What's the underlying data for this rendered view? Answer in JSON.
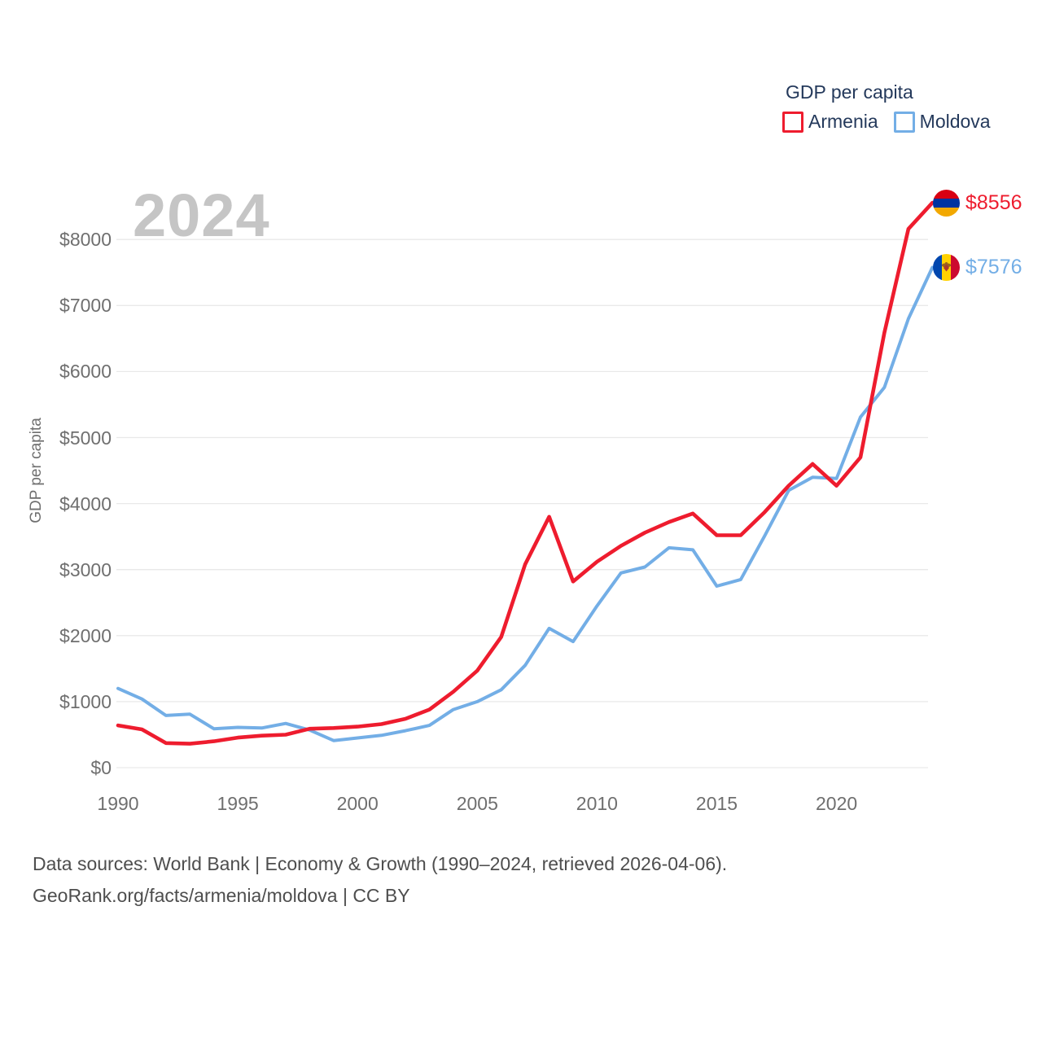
{
  "legend": {
    "title": "GDP per capita",
    "items": [
      {
        "label": "Armenia",
        "color": "#ee1c2e"
      },
      {
        "label": "Moldova",
        "color": "#73aee6"
      }
    ]
  },
  "watermark": "2024",
  "y_axis_title": "GDP per capita",
  "footer": {
    "line1": "Data sources: World Bank | Economy & Growth (1990–2024, retrieved 2026-04-06).",
    "line2": "GeoRank.org/facts/armenia/moldova | CC BY"
  },
  "chart_data": {
    "type": "line",
    "title": "GDP per capita",
    "xlabel": "",
    "ylabel": "GDP per capita",
    "grid": true,
    "legend_position": "top-right",
    "xlim": [
      1990,
      2024
    ],
    "ylim": [
      0,
      8800
    ],
    "x_ticks": [
      1990,
      1995,
      2000,
      2005,
      2010,
      2015,
      2020
    ],
    "y_ticks": [
      {
        "value": 0,
        "label": "$0"
      },
      {
        "value": 1000,
        "label": "$1000"
      },
      {
        "value": 2000,
        "label": "$2000"
      },
      {
        "value": 3000,
        "label": "$3000"
      },
      {
        "value": 4000,
        "label": "$4000"
      },
      {
        "value": 5000,
        "label": "$5000"
      },
      {
        "value": 6000,
        "label": "$6000"
      },
      {
        "value": 7000,
        "label": "$7000"
      },
      {
        "value": 8000,
        "label": "$8000"
      }
    ],
    "x": [
      1990,
      1991,
      1992,
      1993,
      1994,
      1995,
      1996,
      1997,
      1998,
      1999,
      2000,
      2001,
      2002,
      2003,
      2004,
      2005,
      2006,
      2007,
      2008,
      2009,
      2010,
      2011,
      2012,
      2013,
      2014,
      2015,
      2016,
      2017,
      2018,
      2019,
      2020,
      2021,
      2022,
      2023,
      2024
    ],
    "series": [
      {
        "name": "Armenia",
        "color": "#ee1c2e",
        "flag": "armenia-flag",
        "end_label": "$8556",
        "values": [
          640,
          580,
          372,
          362,
          400,
          455,
          485,
          500,
          590,
          600,
          622,
          660,
          740,
          880,
          1150,
          1470,
          1980,
          3080,
          3800,
          2820,
          3120,
          3360,
          3560,
          3720,
          3850,
          3520,
          3520,
          3870,
          4270,
          4600,
          4270,
          4700,
          6590,
          8160,
          8556
        ]
      },
      {
        "name": "Moldova",
        "color": "#73aee6",
        "flag": "moldova-flag",
        "end_label": "$7576",
        "values": [
          1200,
          1040,
          790,
          810,
          590,
          610,
          600,
          670,
          570,
          410,
          450,
          490,
          560,
          640,
          880,
          1000,
          1180,
          1550,
          2110,
          1910,
          2450,
          2950,
          3040,
          3330,
          3300,
          2750,
          2850,
          3510,
          4200,
          4400,
          4380,
          5310,
          5760,
          6800,
          7576
        ]
      }
    ]
  }
}
